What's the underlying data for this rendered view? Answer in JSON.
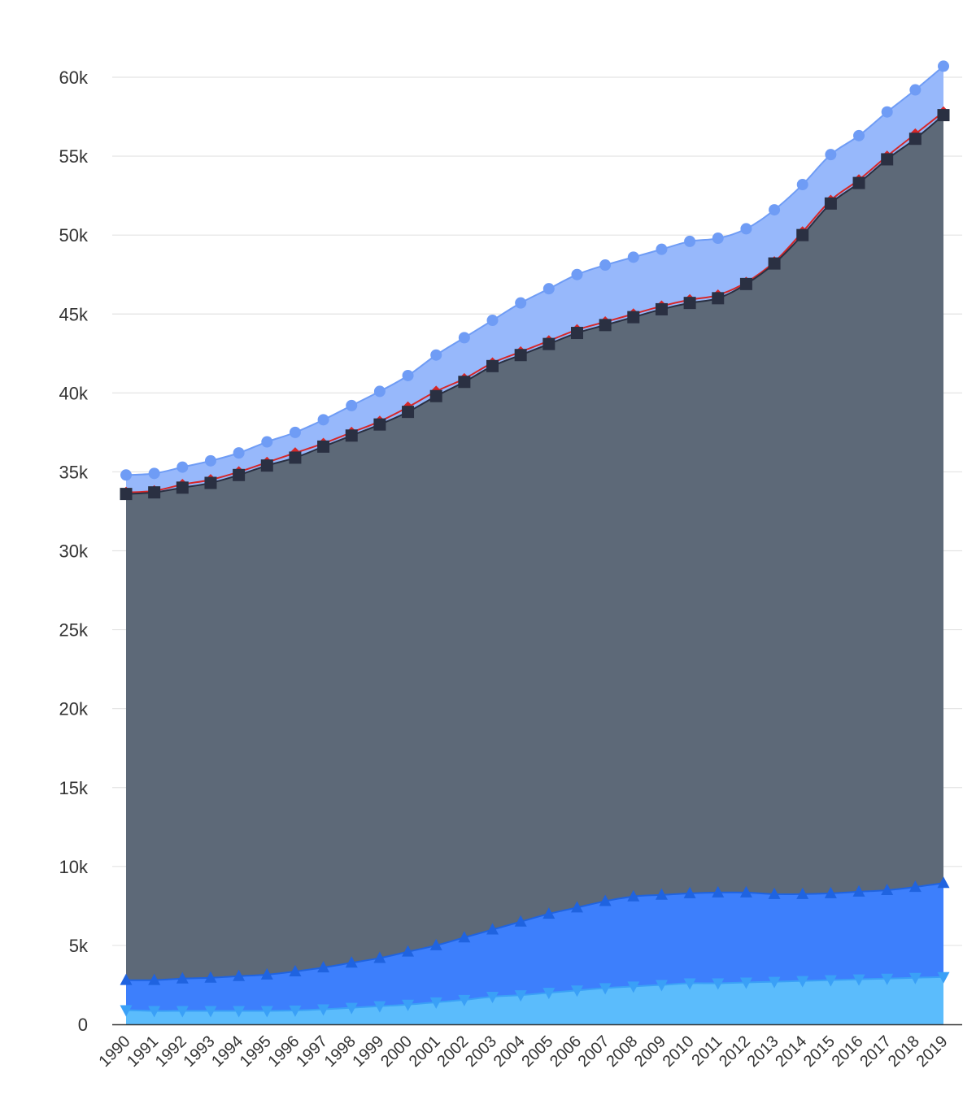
{
  "chart_data": {
    "type": "area",
    "title": "",
    "xlabel": "",
    "ylabel": "",
    "categories": [
      "1990",
      "1991",
      "1992",
      "1993",
      "1994",
      "1995",
      "1996",
      "1997",
      "1998",
      "1999",
      "2000",
      "2001",
      "2002",
      "2003",
      "2004",
      "2005",
      "2006",
      "2007",
      "2008",
      "2009",
      "2010",
      "2011",
      "2012",
      "2013",
      "2014",
      "2015",
      "2016",
      "2017",
      "2018",
      "2019"
    ],
    "ylim": [
      0,
      60000
    ],
    "yticks": [
      0,
      5000,
      10000,
      15000,
      20000,
      25000,
      30000,
      35000,
      40000,
      45000,
      50000,
      55000,
      60000
    ],
    "ytick_labels": [
      "0",
      "5k",
      "10k",
      "15k",
      "20k",
      "25k",
      "30k",
      "35k",
      "40k",
      "45k",
      "50k",
      "55k",
      "60k"
    ],
    "grid": "horizontal",
    "legend": "none",
    "series": [
      {
        "marker": "circle",
        "color": "#6f9cf5",
        "fill": "#97b8fb",
        "values": [
          34800,
          34900,
          35300,
          35700,
          36200,
          36900,
          37500,
          38300,
          39200,
          40100,
          41100,
          42400,
          43500,
          44600,
          45700,
          46600,
          47500,
          48100,
          48600,
          49100,
          49600,
          49800,
          50400,
          51600,
          53200,
          55100,
          56300,
          57800,
          59200,
          60700
        ]
      },
      {
        "marker": "diamond",
        "color": "#d62728",
        "fill": "none",
        "values": [
          33700,
          33800,
          34200,
          34500,
          35000,
          35600,
          36200,
          36800,
          37500,
          38200,
          39100,
          40100,
          40900,
          41900,
          42600,
          43300,
          44000,
          44500,
          45000,
          45500,
          45900,
          46200,
          47000,
          48300,
          50200,
          52200,
          53500,
          55000,
          56400,
          57800
        ]
      },
      {
        "marker": "square",
        "color": "#2a3042",
        "fill": "#5d6978",
        "values": [
          33600,
          33700,
          34000,
          34300,
          34800,
          35400,
          35900,
          36600,
          37300,
          38000,
          38800,
          39800,
          40700,
          41700,
          42400,
          43100,
          43800,
          44300,
          44800,
          45300,
          45700,
          46000,
          46900,
          48200,
          50000,
          52000,
          53300,
          54800,
          56100,
          57600
        ]
      },
      {
        "marker": "triangle-up",
        "color": "#1f63e0",
        "fill": "#3d7ffc",
        "values": [
          2800,
          2800,
          2900,
          2950,
          3050,
          3150,
          3350,
          3600,
          3900,
          4200,
          4600,
          5000,
          5500,
          6000,
          6500,
          7000,
          7400,
          7800,
          8100,
          8200,
          8300,
          8350,
          8350,
          8250,
          8250,
          8300,
          8400,
          8500,
          8700,
          8950
        ]
      },
      {
        "marker": "triangle-down",
        "color": "#3aa0f7",
        "fill": "#5bbcfc",
        "values": [
          900,
          850,
          850,
          850,
          850,
          850,
          880,
          950,
          1050,
          1150,
          1250,
          1400,
          1550,
          1750,
          1850,
          2000,
          2150,
          2300,
          2400,
          2500,
          2600,
          2600,
          2650,
          2700,
          2750,
          2800,
          2850,
          2900,
          2950,
          3000
        ]
      }
    ]
  }
}
